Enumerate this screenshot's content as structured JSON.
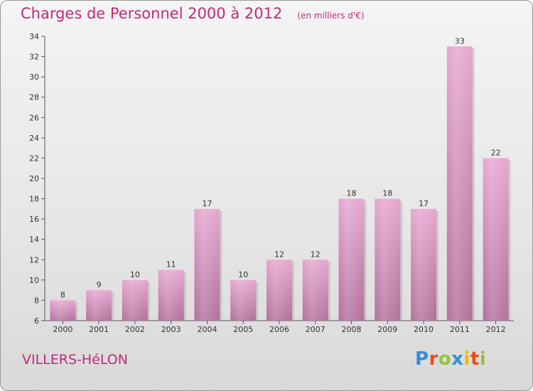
{
  "chart_data": {
    "type": "bar",
    "title": "Charges de Personnel 2000 à 2012",
    "subtitle": "(en milliers d'€)",
    "categories": [
      "2000",
      "2001",
      "2002",
      "2003",
      "2004",
      "2005",
      "2006",
      "2007",
      "2008",
      "2009",
      "2010",
      "2011",
      "2012"
    ],
    "values": [
      8,
      9,
      10,
      11,
      17,
      10,
      12,
      12,
      18,
      18,
      17,
      33,
      22
    ],
    "ylim": [
      6,
      34
    ],
    "yticks": [
      6,
      8,
      10,
      12,
      14,
      16,
      18,
      20,
      22,
      24,
      26,
      28,
      30,
      32,
      34
    ],
    "grid": false,
    "bar_color": "#d98fbd",
    "label_color": "#c4287a"
  },
  "footer": {
    "commune": "VILLERS-HéLON",
    "brand": [
      "P",
      "r",
      "o",
      "x",
      "i",
      "t",
      "i"
    ],
    "brand_colors": [
      "#2f8fd6",
      "#e94e1b",
      "#8cc63f",
      "#2f8fd6",
      "#f4b400",
      "#e94e1b",
      "#8cc63f"
    ]
  }
}
